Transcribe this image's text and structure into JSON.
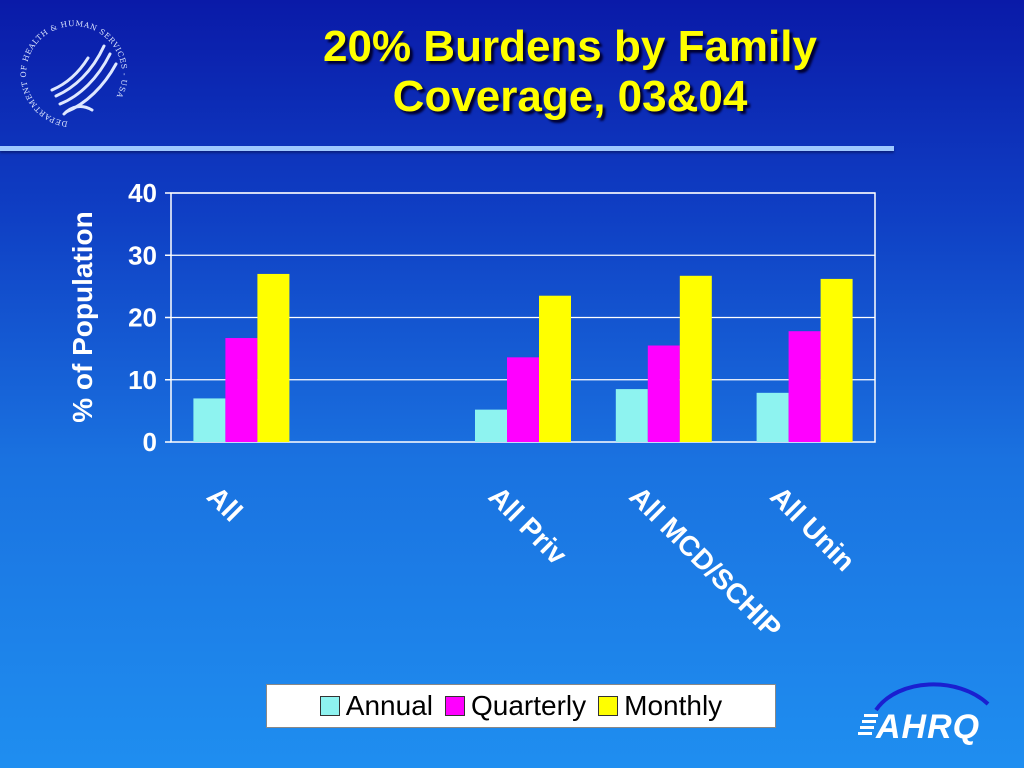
{
  "slide": {
    "title_line1": "20% Burdens by Family",
    "title_line2": "Coverage, 03&04"
  },
  "logos": {
    "hhs_seal_text": "DEPARTMENT OF HEALTH & HUMAN SERVICES - USA",
    "ahrq_text": "AHRQ"
  },
  "colors": {
    "annual": "#8ef3f0",
    "quarterly": "#ff00ff",
    "monthly": "#ffff00",
    "background_top": "#0a1aa8",
    "background_bottom": "#1f8ef0"
  },
  "chart_data": {
    "type": "bar",
    "title": "",
    "ylabel": "% of Population",
    "xlabel": "",
    "ylim": [
      0,
      40
    ],
    "yticks": [
      0,
      10,
      20,
      30,
      40
    ],
    "grid": true,
    "legend_position": "bottom",
    "categories": [
      "All",
      "",
      "All Priv",
      "All MCD/SCHIP",
      "All Unin"
    ],
    "series": [
      {
        "name": "Annual",
        "color": "#8ef3f0",
        "values": [
          7.0,
          null,
          5.2,
          8.5,
          7.9
        ]
      },
      {
        "name": "Quarterly",
        "color": "#ff00ff",
        "values": [
          16.7,
          null,
          13.6,
          15.5,
          17.8
        ]
      },
      {
        "name": "Monthly",
        "color": "#ffff00",
        "values": [
          27.0,
          null,
          23.5,
          26.7,
          26.2
        ]
      }
    ]
  }
}
